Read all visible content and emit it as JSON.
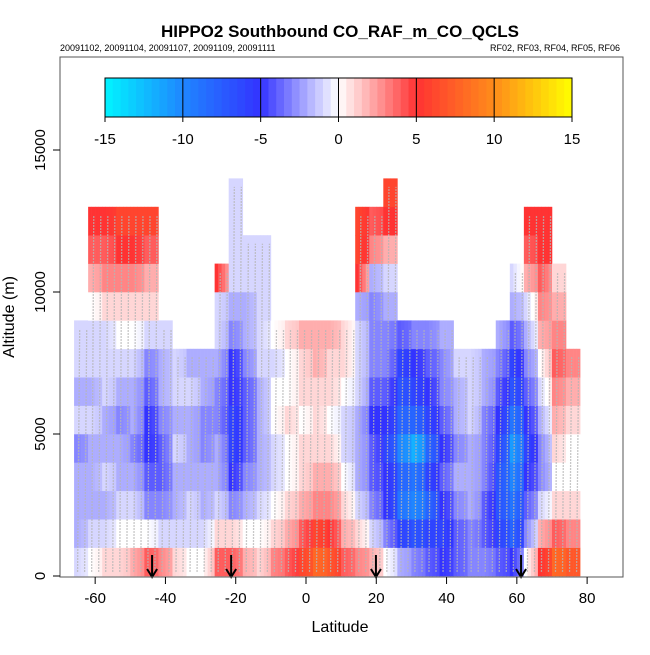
{
  "chart_data": {
    "type": "heatmap",
    "title": "HIPPO2 Southbound CO_RAF_m_CO_QCLS",
    "subtitle_left": "20091102, 20091104, 20091107, 20091109, 20091111",
    "subtitle_right": "RF02, RF03, RF04, RF05, RF06",
    "xlabel": "Latitude",
    "ylabel": "Altitude (m)",
    "xlim": [
      -70,
      90
    ],
    "ylim": [
      0,
      17500
    ],
    "xticks": [
      -60,
      -40,
      -20,
      0,
      20,
      40,
      60,
      80
    ],
    "yticks": [
      0,
      5000,
      10000,
      15000
    ],
    "colorbar": {
      "range": [
        -15,
        15
      ],
      "ticks": [
        -15,
        -10,
        -5,
        0,
        5,
        10,
        15
      ],
      "stops": [
        {
          "v": -15,
          "c": "#00f4ff"
        },
        {
          "v": -10,
          "c": "#1f86ff"
        },
        {
          "v": -5,
          "c": "#3333ff"
        },
        {
          "v": 0,
          "c": "#ffffff"
        },
        {
          "v": 5,
          "c": "#ff3333"
        },
        {
          "v": 10,
          "c": "#ff8c1a"
        },
        {
          "v": 15,
          "c": "#ffff00"
        }
      ]
    },
    "grid": {
      "lat_bin_deg": 4,
      "alt_bin_m": 1000,
      "columns": [
        {
          "lat": -66,
          "values": [
            -1,
            -2,
            -2,
            -2,
            -3,
            -1,
            -2,
            -1,
            -1
          ]
        },
        {
          "lat": -62,
          "values": [
            0,
            -1,
            -2,
            -2,
            -2,
            -1,
            -2,
            -1,
            -1,
            0,
            2,
            4,
            5
          ]
        },
        {
          "lat": -58,
          "values": [
            1,
            -1,
            -2,
            -1,
            -2,
            -2,
            -1,
            -1,
            -1,
            1,
            3,
            4,
            5
          ]
        },
        {
          "lat": -54,
          "values": [
            1,
            0,
            -1,
            -2,
            -2,
            -3,
            -2,
            -1,
            0,
            1,
            3,
            5,
            6
          ]
        },
        {
          "lat": -50,
          "values": [
            2,
            0,
            -1,
            -2,
            -3,
            -2,
            -2,
            -1,
            0,
            1,
            3,
            5,
            6
          ]
        },
        {
          "lat": -46,
          "values": [
            4,
            0,
            -3,
            -4,
            -5,
            -5,
            -4,
            -3,
            -1,
            1,
            2,
            4,
            6
          ]
        },
        {
          "lat": -42,
          "values": [
            3,
            -1,
            -3,
            -4,
            -4,
            -3,
            -2,
            -2,
            -1
          ]
        },
        {
          "lat": -38,
          "values": [
            1,
            -1,
            -2,
            -2,
            -1,
            -2,
            -1,
            -1
          ]
        },
        {
          "lat": -34,
          "values": [
            0,
            -1,
            -1,
            -2,
            -2,
            -2,
            -1,
            -2
          ]
        },
        {
          "lat": -30,
          "values": [
            0,
            -1,
            -2,
            -2,
            -3,
            -3,
            -2,
            -2
          ]
        },
        {
          "lat": -26,
          "values": [
            4,
            1,
            -1,
            -2,
            -2,
            -3,
            -3,
            -2,
            -1,
            -1,
            5
          ]
        },
        {
          "lat": -22,
          "values": [
            4,
            1,
            -3,
            -5,
            -6,
            -6,
            -5,
            -5,
            -3,
            -2,
            -1,
            -1,
            -1,
            -1
          ]
        },
        {
          "lat": -18,
          "values": [
            2,
            0,
            -2,
            -3,
            -4,
            -4,
            -4,
            -3,
            -2,
            -2,
            -1,
            -1
          ]
        },
        {
          "lat": -14,
          "values": [
            1,
            0,
            -1,
            -2,
            -2,
            -2,
            -2,
            -1,
            -1,
            -1,
            -1,
            -1
          ]
        },
        {
          "lat": -10,
          "values": [
            3,
            1,
            0,
            -1,
            -1,
            0,
            0,
            -1,
            0
          ]
        },
        {
          "lat": -6,
          "values": [
            4,
            2,
            1,
            0,
            0,
            1,
            0,
            0,
            1
          ]
        },
        {
          "lat": -2,
          "values": [
            6,
            4,
            2,
            1,
            1,
            0,
            1,
            1,
            2
          ]
        },
        {
          "lat": 2,
          "values": [
            8,
            6,
            3,
            2,
            1,
            1,
            1,
            2,
            2
          ]
        },
        {
          "lat": 6,
          "values": [
            7,
            5,
            3,
            2,
            1,
            0,
            1,
            1,
            2
          ]
        },
        {
          "lat": 10,
          "values": [
            4,
            2,
            1,
            0,
            -1,
            -1,
            0,
            1,
            1
          ]
        },
        {
          "lat": 14,
          "values": [
            3,
            1,
            -1,
            -2,
            -2,
            -2,
            -1,
            -1,
            -1,
            -2,
            5,
            6,
            6
          ]
        },
        {
          "lat": 18,
          "values": [
            2,
            -1,
            -3,
            -4,
            -4,
            -5,
            -4,
            -3,
            -3,
            -3,
            -2,
            3,
            4
          ]
        },
        {
          "lat": 22,
          "values": [
            0,
            -3,
            -5,
            -5,
            -6,
            -5,
            -4,
            -3,
            -3,
            -2,
            -1,
            2,
            5,
            6
          ]
        },
        {
          "lat": 26,
          "values": [
            -2,
            -6,
            -9,
            -8,
            -10,
            -8,
            -7,
            -6,
            -4
          ]
        },
        {
          "lat": 30,
          "values": [
            -3,
            -7,
            -10,
            -9,
            -12,
            -8,
            -6,
            -5,
            -3
          ]
        },
        {
          "lat": 34,
          "values": [
            -4,
            -6,
            -8,
            -6,
            -8,
            -6,
            -5,
            -4,
            -3
          ]
        },
        {
          "lat": 38,
          "values": [
            -5,
            -6,
            -5,
            -4,
            -5,
            -4,
            -3,
            -3,
            -2
          ]
        },
        {
          "lat": 42,
          "values": [
            -4,
            -4,
            -3,
            -2,
            -3,
            -2,
            -2,
            -1
          ]
        },
        {
          "lat": 46,
          "values": [
            -3,
            -3,
            -2,
            -2,
            -2,
            -1,
            -1,
            -1
          ]
        },
        {
          "lat": 50,
          "values": [
            -3,
            -4,
            -4,
            -3,
            -3,
            -3,
            -2,
            -2
          ]
        },
        {
          "lat": 54,
          "values": [
            -4,
            -6,
            -7,
            -7,
            -6,
            -5,
            -4,
            -3,
            -2
          ]
        },
        {
          "lat": 58,
          "values": [
            -5,
            -8,
            -9,
            -10,
            -11,
            -9,
            -7,
            -6,
            -4,
            -2,
            -1
          ]
        },
        {
          "lat": 62,
          "values": [
            0,
            -3,
            -4,
            -5,
            -6,
            -5,
            -4,
            -3,
            -2,
            -1,
            2,
            4,
            5
          ]
        },
        {
          "lat": 66,
          "values": [
            5,
            2,
            -1,
            -3,
            -3,
            -2,
            -1,
            0,
            2,
            3,
            4,
            5,
            5
          ]
        },
        {
          "lat": 70,
          "values": [
            8,
            4,
            1,
            0,
            1,
            2,
            3,
            4,
            3,
            2,
            1
          ]
        },
        {
          "lat": 74,
          "values": [
            7,
            3,
            1,
            0,
            0,
            1,
            2,
            3
          ]
        }
      ]
    },
    "arrow_latitudes": [
      -43.8,
      -21.3,
      19.9,
      61.2
    ]
  }
}
